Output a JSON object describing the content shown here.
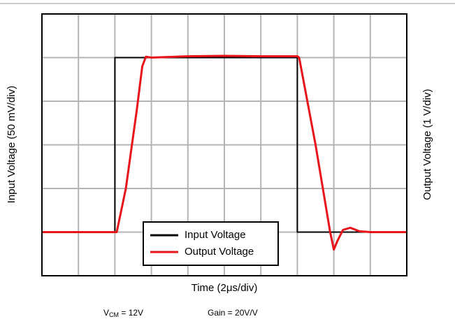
{
  "chart_data": {
    "type": "line",
    "xlabel": "Time (2μs/div)",
    "ylabel": "Input Voltage (50 mV/div)",
    "y2label": "Output Voltage (1 V/div)",
    "notes": [
      {
        "text": "V",
        "sub": "CM",
        "rest": " = 12V"
      },
      {
        "text": "Gain = 20V/V"
      }
    ],
    "xlim": [
      0,
      10
    ],
    "xticks": [
      1,
      2,
      3,
      4,
      5,
      6,
      7,
      8,
      9
    ],
    "ylim": [
      0,
      6
    ],
    "yticks": [
      1,
      2,
      3,
      4,
      5
    ],
    "grid": true,
    "legend": "bottom",
    "series": [
      {
        "name": "Input Voltage",
        "color": "#000000",
        "x": [
          0,
          2,
          2,
          7,
          7,
          10
        ],
        "values": [
          1,
          1,
          5,
          5,
          1,
          1
        ]
      },
      {
        "name": "Output Voltage",
        "color": "#e8141a",
        "x": [
          0,
          2,
          2.05,
          2.3,
          2.6,
          2.75,
          2.85,
          3,
          4,
          5,
          6,
          7,
          7.05,
          7.5,
          7.9,
          8,
          8.1,
          8.25,
          8.45,
          8.7,
          9,
          10
        ],
        "values": [
          1,
          1,
          1,
          2,
          3.8,
          4.8,
          5.02,
          5,
          5.03,
          5.04,
          5.03,
          5.03,
          5,
          3,
          1,
          0.6,
          0.8,
          1.05,
          1.1,
          1.02,
          1,
          1
        ]
      }
    ]
  }
}
